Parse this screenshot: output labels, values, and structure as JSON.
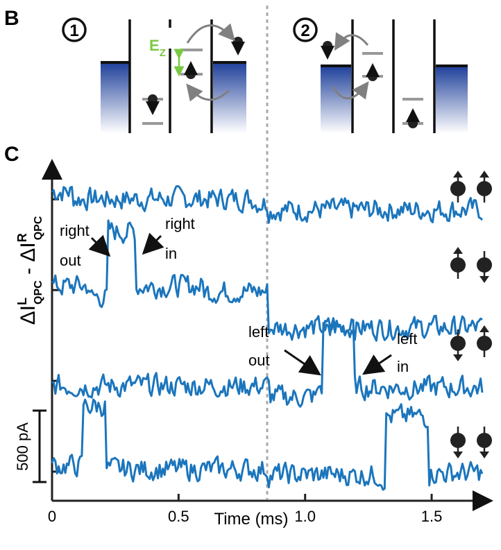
{
  "panels": {
    "B": {
      "label": "B",
      "states": [
        {
          "label": "①"
        },
        {
          "label": "②"
        }
      ],
      "energy_label": "E",
      "energy_subscript": "Z",
      "colors": {
        "lead_dark": "#1e3f9a",
        "lead_light": "#ffffff",
        "arrow": "#808080",
        "ez": "#7ac943",
        "dot": "#222222"
      }
    },
    "C": {
      "label": "C",
      "annotations": {
        "right_out": [
          "right",
          "out"
        ],
        "right_in": [
          "right",
          "in"
        ],
        "left_out": [
          "left",
          "out"
        ],
        "left_in": [
          "left",
          "in"
        ]
      },
      "scale_bar_label": "500 pA",
      "spin_configs": [
        {
          "left": "up",
          "right": "up"
        },
        {
          "left": "up",
          "right": "down"
        },
        {
          "left": "down",
          "right": "up"
        },
        {
          "left": "down",
          "right": "down"
        }
      ],
      "colors": {
        "trace": "#1b75bc",
        "dashed_line": "#aaaaaa",
        "axis": "#222222"
      }
    }
  },
  "chart_data": {
    "type": "line",
    "title": "",
    "xlabel": "Time (ms)",
    "ylabel": "ΔI_QPC^L - ΔI_QPC^R",
    "ylabel_parts": {
      "delta": "ΔI",
      "sub": "QPC",
      "sup_l": "L",
      "sup_r": "R",
      "minus": " - "
    },
    "xlim": [
      0,
      1.7
    ],
    "x_ticks": [
      0,
      0.5,
      1.0,
      1.5
    ],
    "x_tick_labels": [
      "0",
      "0.5",
      "1.0",
      "1.5"
    ],
    "dashed_line_x": 0.85,
    "units": "pA",
    "series": [
      {
        "baseline_pA": 1550,
        "steps": [
          {
            "x": 0.0,
            "value": 1600
          },
          {
            "x": 0.08,
            "value": 1560
          },
          {
            "x": 0.8,
            "value": 1540
          },
          {
            "x": 0.85,
            "value": 1500
          },
          {
            "x": 1.7,
            "value": 1470
          }
        ]
      },
      {
        "baseline_pA": 1050,
        "steps": [
          {
            "x": 0.0,
            "value": 1080
          },
          {
            "x": 0.15,
            "value": 1020
          },
          {
            "x": 0.22,
            "value": 1380
          },
          {
            "x": 0.33,
            "value": 1080
          },
          {
            "x": 0.6,
            "value": 1050
          },
          {
            "x": 0.85,
            "value": 850
          },
          {
            "x": 1.7,
            "value": 880
          }
        ]
      },
      {
        "baseline_pA": 500,
        "steps": [
          {
            "x": 0.0,
            "value": 530
          },
          {
            "x": 0.85,
            "value": 520
          },
          {
            "x": 0.86,
            "value": 470
          },
          {
            "x": 1.05,
            "value": 520
          },
          {
            "x": 1.07,
            "value": 850
          },
          {
            "x": 1.19,
            "value": 520
          },
          {
            "x": 1.7,
            "value": 500
          }
        ]
      },
      {
        "baseline_pA": 0,
        "steps": [
          {
            "x": 0.0,
            "value": 90
          },
          {
            "x": 0.12,
            "value": 420
          },
          {
            "x": 0.21,
            "value": 70
          },
          {
            "x": 0.85,
            "value": 40
          },
          {
            "x": 1.3,
            "value": 20
          },
          {
            "x": 1.32,
            "value": 360
          },
          {
            "x": 1.49,
            "value": 50
          },
          {
            "x": 1.7,
            "value": 40
          }
        ]
      }
    ],
    "scale_bar_pA": 500,
    "grid": false,
    "legend": "none"
  }
}
